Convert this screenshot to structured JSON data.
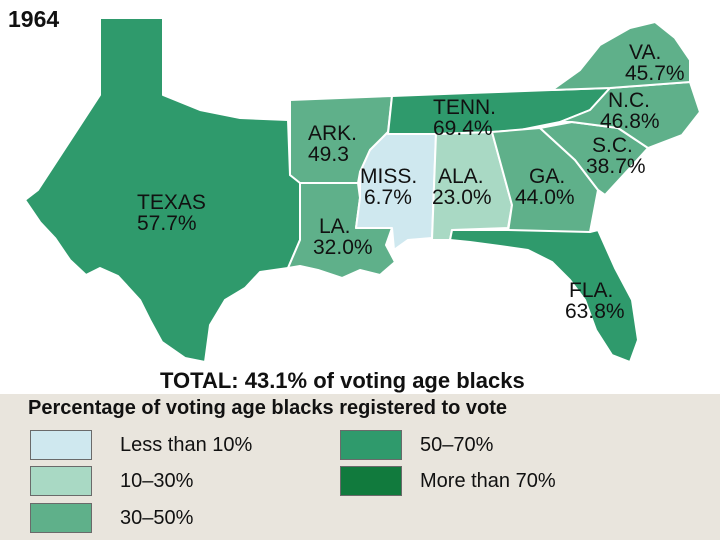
{
  "title": "1964",
  "colors": {
    "lt10": "#cfe8ef",
    "b10_30": "#a9d9c4",
    "b30_50": "#5fb08a",
    "b50_70": "#2f9a6c",
    "gt70": "#117a3d",
    "border": "#ffffff",
    "legend_bg": "#e9e5dd"
  },
  "states": [
    {
      "id": "texas",
      "name": "TEXAS",
      "value": "57.7%",
      "category": "b50_70"
    },
    {
      "id": "ark",
      "name": "ARK.",
      "value": "49.3",
      "category": "b30_50"
    },
    {
      "id": "la",
      "name": "LA.",
      "value": "32.0%",
      "category": "b30_50"
    },
    {
      "id": "miss",
      "name": "MISS.",
      "value": "6.7%",
      "category": "lt10"
    },
    {
      "id": "tenn",
      "name": "TENN.",
      "value": "69.4%",
      "category": "b50_70"
    },
    {
      "id": "ala",
      "name": "ALA.",
      "value": "23.0%",
      "category": "b10_30"
    },
    {
      "id": "ga",
      "name": "GA.",
      "value": "44.0%",
      "category": "b30_50"
    },
    {
      "id": "fla",
      "name": "FLA.",
      "value": "63.8%",
      "category": "b50_70"
    },
    {
      "id": "sc",
      "name": "S.C.",
      "value": "38.7%",
      "category": "b30_50"
    },
    {
      "id": "nc",
      "name": "N.C.",
      "value": "46.8%",
      "category": "b30_50"
    },
    {
      "id": "va",
      "name": "VA.",
      "value": "45.7%",
      "category": "b30_50"
    }
  ],
  "total": "TOTAL: 43.1% of voting age blacks",
  "legend": {
    "title": "Percentage of voting age blacks registered to vote",
    "items": [
      {
        "label": "Less than 10%",
        "category": "lt10"
      },
      {
        "label": "10–30%",
        "category": "b10_30"
      },
      {
        "label": "30–50%",
        "category": "b30_50"
      },
      {
        "label": "50–70%",
        "category": "b50_70"
      },
      {
        "label": "More than 70%",
        "category": "gt70"
      }
    ]
  }
}
